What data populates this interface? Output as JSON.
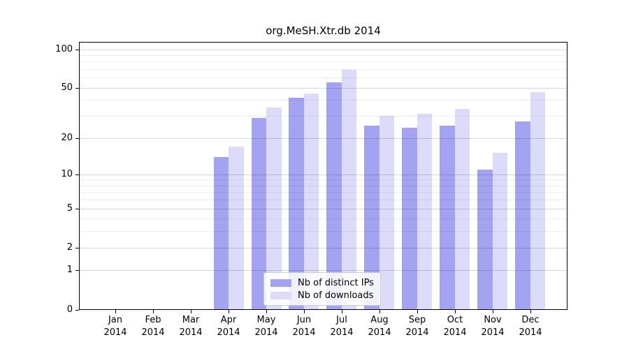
{
  "figure": {
    "title": "org.MeSH.Xtr.db 2014"
  },
  "chart_data": {
    "type": "bar",
    "title": "org.MeSH.Xtr.db 2014",
    "categories": [
      "Jan",
      "Feb",
      "Mar",
      "Apr",
      "May",
      "Jun",
      "Jul",
      "Aug",
      "Sep",
      "Oct",
      "Nov",
      "Dec"
    ],
    "category_year": "2014",
    "series": [
      {
        "name": "Nb of distinct IPs",
        "color": "#a3a3f2",
        "values": [
          0,
          0,
          0,
          14,
          29,
          42,
          55,
          25,
          24,
          25,
          11,
          27
        ]
      },
      {
        "name": "Nb of downloads",
        "color": "#dcdcfa",
        "values": [
          0,
          0,
          0,
          17,
          35,
          45,
          69,
          30,
          31,
          34,
          15,
          46
        ]
      }
    ],
    "xlabel": "",
    "ylabel": "",
    "yscale": "log1p",
    "ylim": [
      0,
      114
    ],
    "y_ticks": [
      100,
      50,
      20,
      10,
      5,
      2,
      1,
      0
    ],
    "y_minor_gridlines": [
      3,
      4,
      6,
      7,
      8,
      9,
      30,
      40,
      60,
      70,
      80,
      90
    ],
    "grid": true,
    "legend_position": "inside-bottom-center",
    "colors": {
      "background": "#ffffff",
      "spine": "#000000",
      "bar_distinct_ips": "#a3a3f2",
      "bar_downloads": "#dcdcfa"
    }
  }
}
